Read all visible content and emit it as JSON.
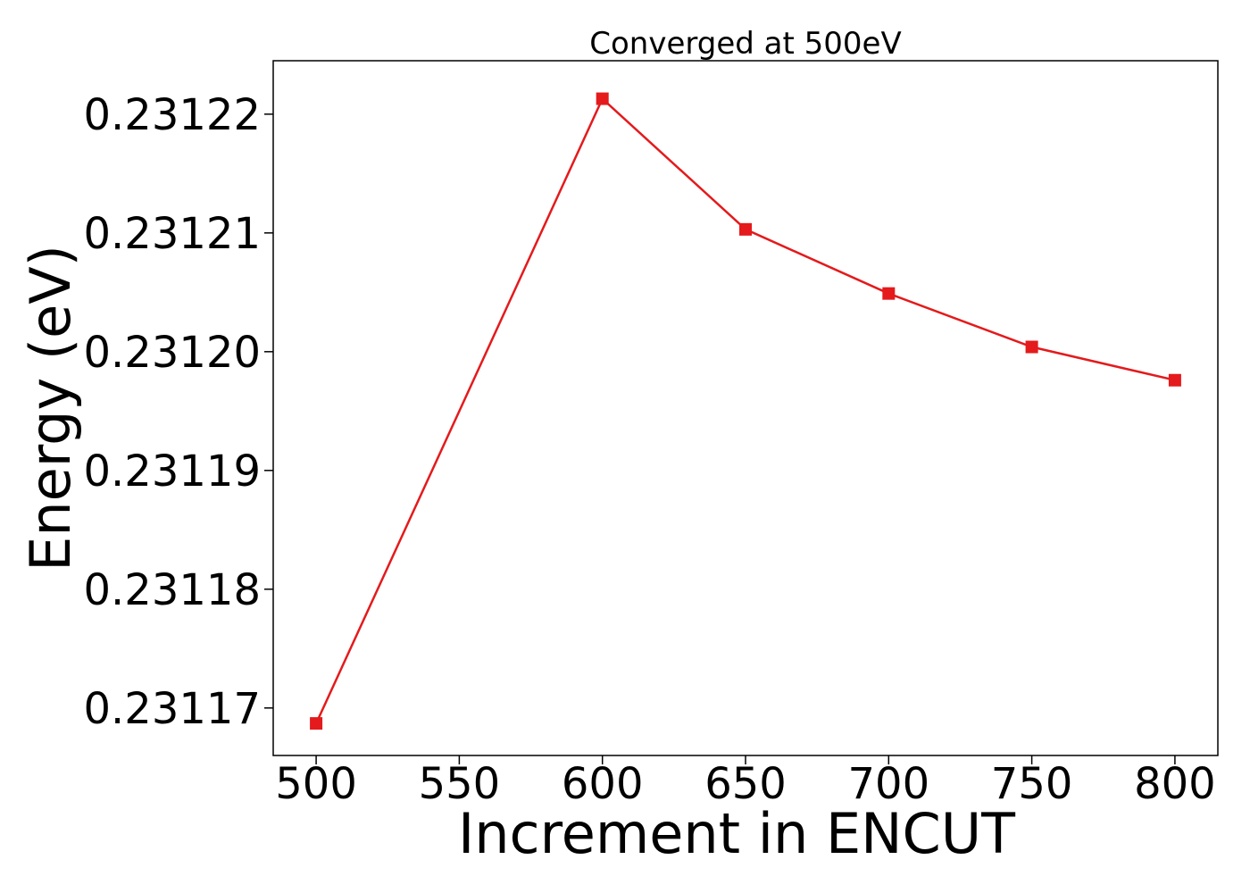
{
  "chart_data": {
    "type": "line",
    "title": "Converged at 500eV",
    "xlabel": "Increment in ENCUT",
    "ylabel": "Energy (eV)",
    "x": [
      500,
      600,
      650,
      700,
      750,
      800
    ],
    "series": [
      {
        "values": [
          0.2311687,
          0.2312213,
          0.2312103,
          0.2312049,
          0.2312004,
          0.2311976
        ],
        "color": "#e41a1c",
        "marker": "square"
      }
    ],
    "xticks": [
      500,
      550,
      600,
      650,
      700,
      750,
      800
    ],
    "xtick_labels": [
      "500",
      "550",
      "600",
      "650",
      "700",
      "750",
      "800"
    ],
    "yticks": [
      0.23117,
      0.23118,
      0.23119,
      0.2312,
      0.23121,
      0.23122
    ],
    "ytick_labels": [
      "0.23117",
      "0.23118",
      "0.23119",
      "0.23120",
      "0.23121",
      "0.23122"
    ],
    "xlim": [
      485,
      815
    ],
    "ylim": [
      0.231166,
      0.2312245
    ],
    "grid": false,
    "legend": "none"
  }
}
